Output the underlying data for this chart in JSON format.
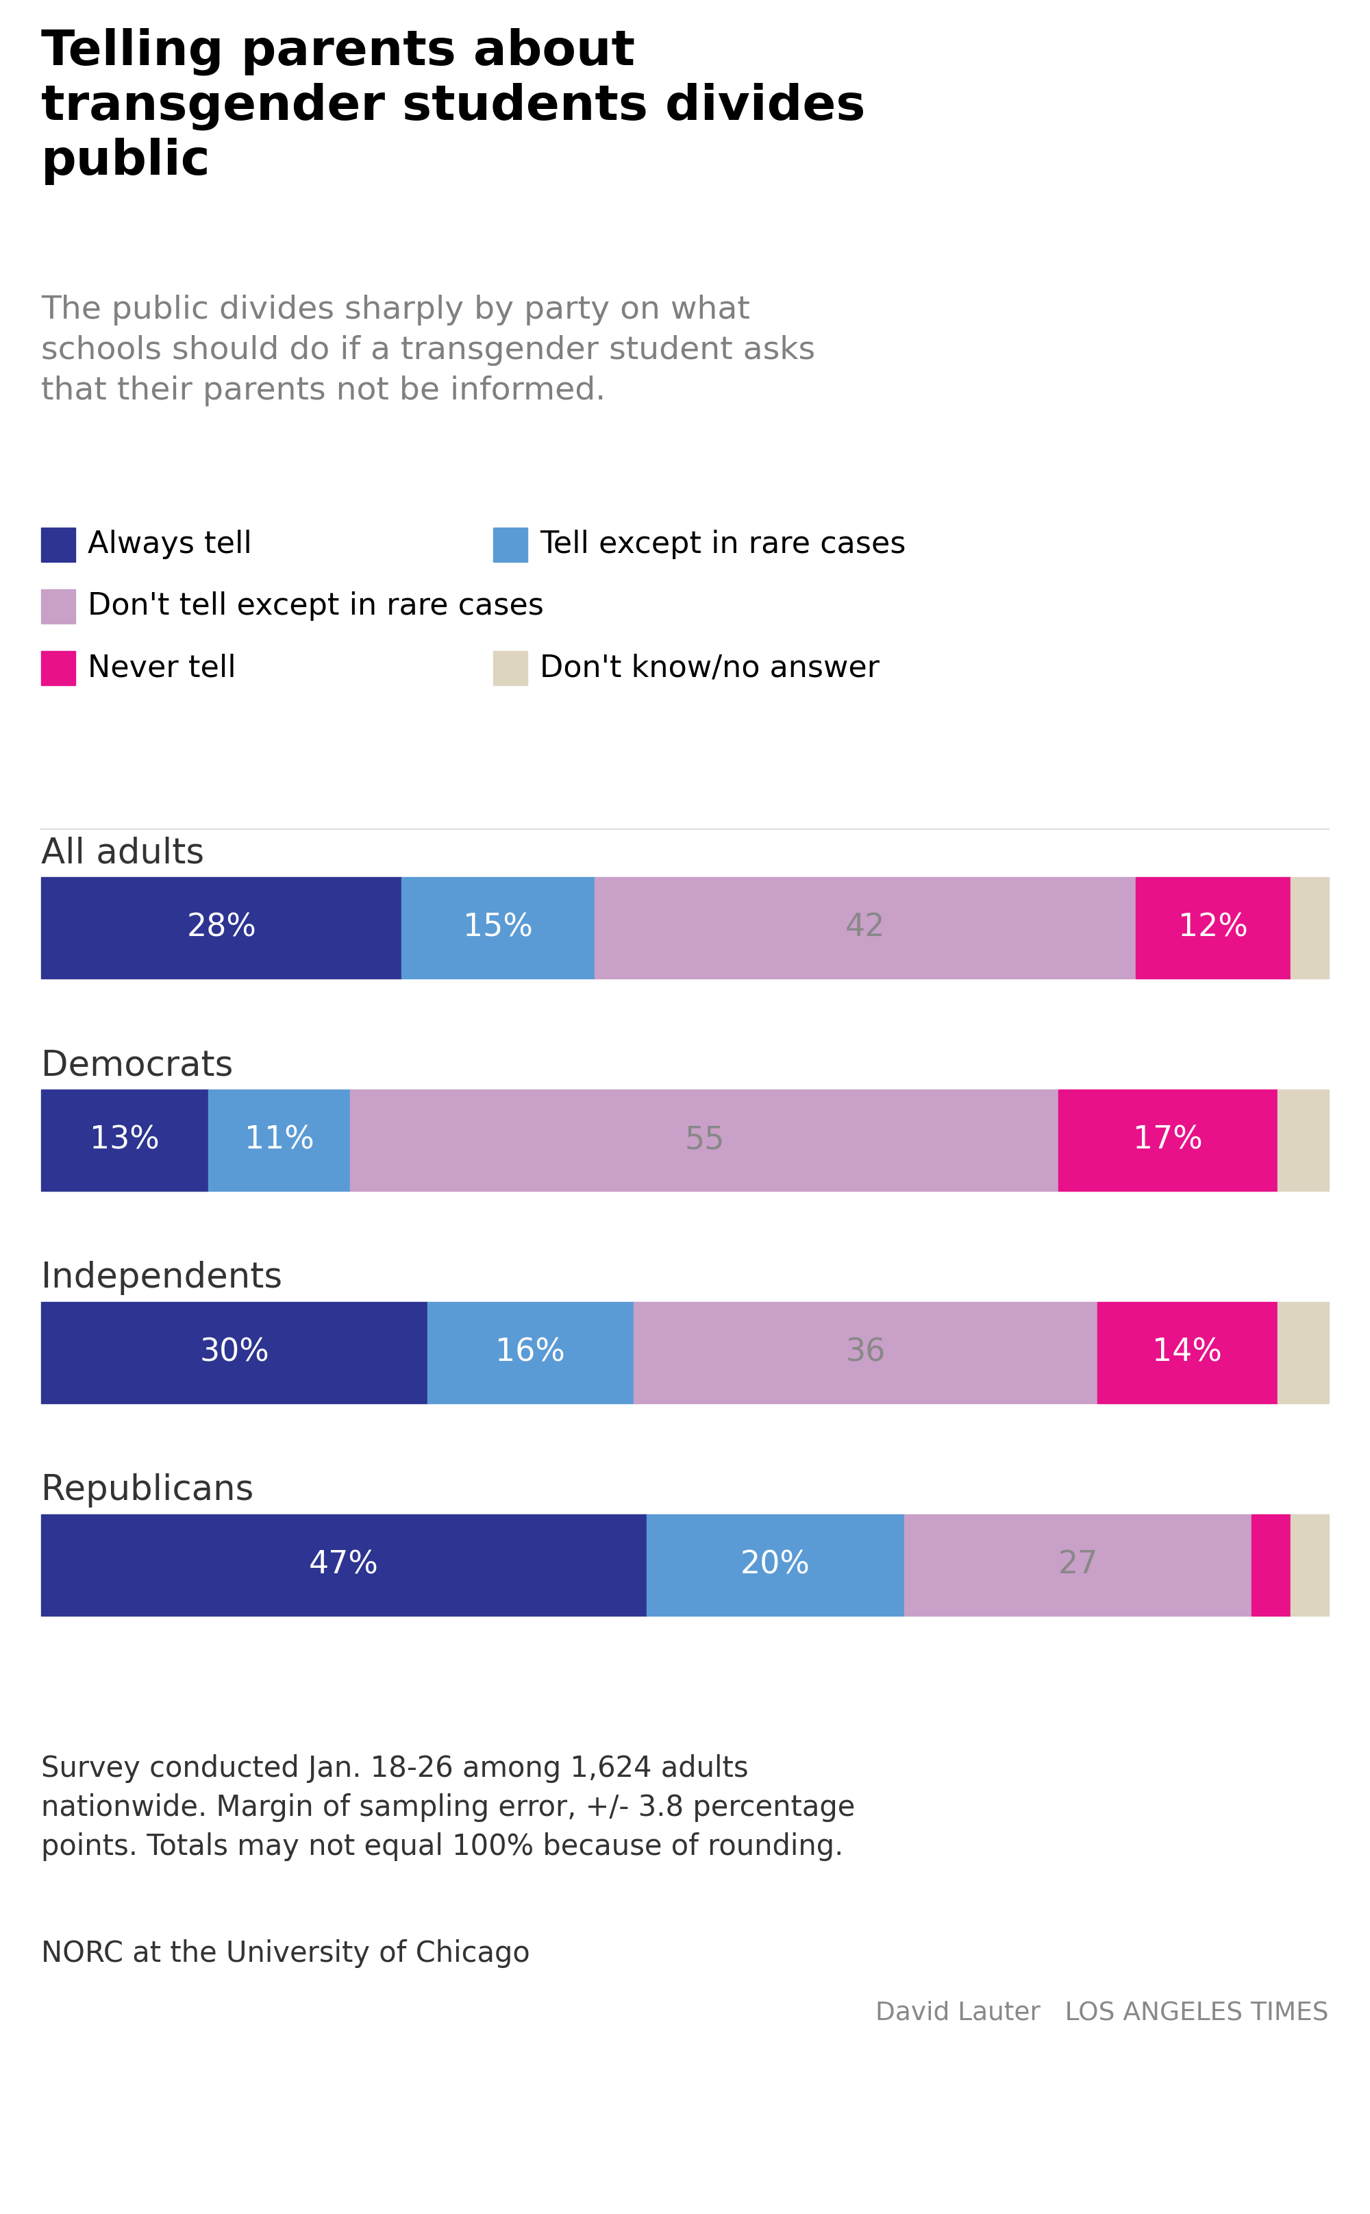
{
  "title": "Telling parents about\ntransgender students divides\npublic",
  "subtitle": "The public divides sharply by party on what\nschools should do if a transgender student asks\nthat their parents not be informed.",
  "groups": [
    "All adults",
    "Democrats",
    "Independents",
    "Republicans"
  ],
  "colors": [
    "#2d3491",
    "#5b9bd5",
    "#c9a0c8",
    "#e8118a",
    "#ddd5c0"
  ],
  "data": [
    [
      28,
      15,
      42,
      12,
      3
    ],
    [
      13,
      11,
      55,
      17,
      4
    ],
    [
      30,
      16,
      36,
      14,
      4
    ],
    [
      47,
      20,
      27,
      3,
      3
    ]
  ],
  "bar_labels": [
    [
      "28%",
      "15%",
      "42",
      "12%",
      ""
    ],
    [
      "13%",
      "11%",
      "55",
      "17%",
      ""
    ],
    [
      "30%",
      "16%",
      "36",
      "14%",
      ""
    ],
    [
      "47%",
      "20%",
      "27",
      "",
      ""
    ]
  ],
  "label_colors": [
    [
      "white",
      "white",
      "#888888",
      "white",
      ""
    ],
    [
      "white",
      "white",
      "#888888",
      "white",
      ""
    ],
    [
      "white",
      "white",
      "#888888",
      "white",
      ""
    ],
    [
      "white",
      "white",
      "#888888",
      "",
      ""
    ]
  ],
  "legend": [
    {
      "color": "#2d3491",
      "label": "Always tell",
      "row": 0,
      "col": 0
    },
    {
      "color": "#5b9bd5",
      "label": "Tell except in rare cases",
      "row": 0,
      "col": 1
    },
    {
      "color": "#c9a0c8",
      "label": "Don't tell except in rare cases",
      "row": 1,
      "col": 0
    },
    {
      "color": "#e8118a",
      "label": "Never tell",
      "row": 2,
      "col": 0
    },
    {
      "color": "#ddd5c0",
      "label": "Don't know/no answer",
      "row": 2,
      "col": 1
    }
  ],
  "footnote": "Survey conducted Jan. 18-26 among 1,624 adults\nnationwide. Margin of sampling error, +/- 3.8 percentage\npoints. Totals may not equal 100% because of rounding.",
  "source": "NORC at the University of Chicago",
  "credit": "David Lauter   LOS ANGELES TIMES",
  "background_color": "#ffffff",
  "title_color": "#000000",
  "subtitle_color": "#808080",
  "group_label_color": "#333333",
  "footnote_color": "#333333",
  "credit_color": "#888888"
}
